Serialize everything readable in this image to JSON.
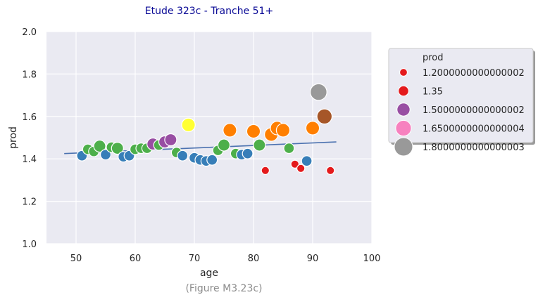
{
  "chart_data": {
    "type": "scatter",
    "title": "Etude 323c - Tranche 51+",
    "caption": "(Figure M3.23c)",
    "xlabel": "age",
    "ylabel": "prod",
    "xlim": [
      45,
      100
    ],
    "ylim": [
      1.0,
      2.0
    ],
    "xticks": [
      "50",
      "60",
      "70",
      "80",
      "90",
      "100"
    ],
    "yticks": [
      "1.0",
      "1.2",
      "1.4",
      "1.6",
      "1.8",
      "2.0"
    ],
    "grid": true,
    "legend": {
      "title": "prod",
      "placement": "outside-right",
      "entries": [
        {
          "label": "1.2000000000000002",
          "color": "#e41a1c",
          "size": 1
        },
        {
          "label": "1.35",
          "color": "#e41a1c",
          "size": 2
        },
        {
          "label": "1.5000000000000002",
          "color": "#984ea3",
          "size": 3
        },
        {
          "label": "1.6500000000000004",
          "color": "#f781bf",
          "size": 4
        },
        {
          "label": "1.8000000000000003",
          "color": "#999999",
          "size": 5
        }
      ]
    },
    "colors": {
      "red": "#e41a1c",
      "blue": "#377eb8",
      "green": "#4daf4a",
      "purple": "#984ea3",
      "orange": "#ff7f00",
      "yellow": "#ffff33",
      "brown": "#a65628",
      "gray": "#999999",
      "trend": "#4c72b0"
    },
    "trendline": {
      "x": [
        48,
        94
      ],
      "y": [
        1.425,
        1.48
      ]
    },
    "points": [
      {
        "x": 51,
        "y": 1.415,
        "color": "blue",
        "size": 2
      },
      {
        "x": 52,
        "y": 1.445,
        "color": "green",
        "size": 2
      },
      {
        "x": 53,
        "y": 1.435,
        "color": "green",
        "size": 2
      },
      {
        "x": 54,
        "y": 1.46,
        "color": "green",
        "size": 2.5
      },
      {
        "x": 55,
        "y": 1.42,
        "color": "blue",
        "size": 2
      },
      {
        "x": 56,
        "y": 1.455,
        "color": "green",
        "size": 2
      },
      {
        "x": 57,
        "y": 1.45,
        "color": "green",
        "size": 2.5
      },
      {
        "x": 58,
        "y": 1.41,
        "color": "blue",
        "size": 2
      },
      {
        "x": 59,
        "y": 1.415,
        "color": "blue",
        "size": 2
      },
      {
        "x": 60,
        "y": 1.445,
        "color": "green",
        "size": 2
      },
      {
        "x": 61,
        "y": 1.45,
        "color": "green",
        "size": 2
      },
      {
        "x": 62,
        "y": 1.45,
        "color": "green",
        "size": 2
      },
      {
        "x": 63,
        "y": 1.47,
        "color": "purple",
        "size": 2.5
      },
      {
        "x": 64,
        "y": 1.465,
        "color": "green",
        "size": 2
      },
      {
        "x": 65,
        "y": 1.48,
        "color": "purple",
        "size": 2.5
      },
      {
        "x": 66,
        "y": 1.49,
        "color": "purple",
        "size": 2.5
      },
      {
        "x": 67,
        "y": 1.43,
        "color": "green",
        "size": 2
      },
      {
        "x": 68,
        "y": 1.415,
        "color": "blue",
        "size": 2
      },
      {
        "x": 69,
        "y": 1.56,
        "color": "yellow",
        "size": 3
      },
      {
        "x": 70,
        "y": 1.405,
        "color": "blue",
        "size": 2
      },
      {
        "x": 71,
        "y": 1.395,
        "color": "blue",
        "size": 2
      },
      {
        "x": 72,
        "y": 1.39,
        "color": "blue",
        "size": 2
      },
      {
        "x": 73,
        "y": 1.395,
        "color": "blue",
        "size": 2
      },
      {
        "x": 74,
        "y": 1.44,
        "color": "green",
        "size": 2
      },
      {
        "x": 75,
        "y": 1.465,
        "color": "green",
        "size": 2.5
      },
      {
        "x": 76,
        "y": 1.535,
        "color": "orange",
        "size": 3
      },
      {
        "x": 77,
        "y": 1.425,
        "color": "green",
        "size": 2
      },
      {
        "x": 78,
        "y": 1.42,
        "color": "blue",
        "size": 2
      },
      {
        "x": 79,
        "y": 1.425,
        "color": "blue",
        "size": 2
      },
      {
        "x": 80,
        "y": 1.53,
        "color": "orange",
        "size": 3
      },
      {
        "x": 81,
        "y": 1.465,
        "color": "green",
        "size": 2.5
      },
      {
        "x": 82,
        "y": 1.345,
        "color": "red",
        "size": 1.2
      },
      {
        "x": 83,
        "y": 1.515,
        "color": "orange",
        "size": 3
      },
      {
        "x": 84,
        "y": 1.545,
        "color": "orange",
        "size": 3
      },
      {
        "x": 85,
        "y": 1.535,
        "color": "orange",
        "size": 3
      },
      {
        "x": 86,
        "y": 1.45,
        "color": "green",
        "size": 2
      },
      {
        "x": 87,
        "y": 1.375,
        "color": "red",
        "size": 1.2
      },
      {
        "x": 88,
        "y": 1.355,
        "color": "red",
        "size": 1.2
      },
      {
        "x": 89,
        "y": 1.39,
        "color": "blue",
        "size": 2
      },
      {
        "x": 90,
        "y": 1.545,
        "color": "orange",
        "size": 3
      },
      {
        "x": 91,
        "y": 1.715,
        "color": "gray",
        "size": 4
      },
      {
        "x": 92,
        "y": 1.6,
        "color": "brown",
        "size": 3.5
      },
      {
        "x": 93,
        "y": 1.345,
        "color": "red",
        "size": 1.2
      }
    ]
  }
}
